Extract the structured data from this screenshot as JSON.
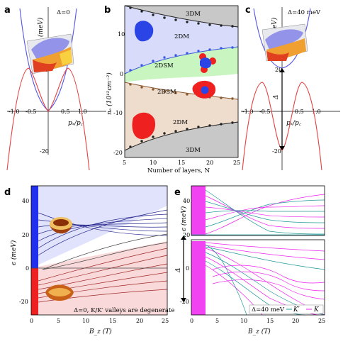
{
  "panels": {
    "a": {
      "label": "a",
      "annotation": "Δ=0",
      "ylabel": "ϵ (meV)",
      "xlabel": "pₓ/p꜀",
      "xticks": [
        "-1.0",
        "-0.5",
        "0.5",
        "1.0"
      ],
      "yticks": [
        "20",
        "-20"
      ]
    },
    "b": {
      "label": "b",
      "ylabel": "nₑ (10¹²cm⁻²)",
      "xlabel": "Number of layers, N",
      "xticks": [
        "5",
        "10",
        "15",
        "20",
        "25"
      ],
      "yticks": [
        "10",
        "0",
        "-10",
        "-20"
      ],
      "regions": [
        "3DM",
        "2DM",
        "2DSM",
        "2DSM",
        "2DM",
        "3DM"
      ]
    },
    "c": {
      "label": "c",
      "annotation": "Δ=40 meV",
      "ylabel": "ϵ (meV)",
      "xlabel": "pₓ/p꜀",
      "xticks": [
        "-1.0",
        "-0.5",
        "0.5",
        "1.0"
      ],
      "yticks": [
        "20",
        "-20"
      ],
      "gap_label": "Δ"
    },
    "d": {
      "label": "d",
      "ylabel": "ϵ (meV)",
      "xlabel": "B_z (T)",
      "xticks": [
        "0",
        "5",
        "10",
        "15",
        "20",
        "25"
      ],
      "yticks": [
        "40",
        "20",
        "0",
        "-20"
      ],
      "note": "Δ=0, K/K′ valleys are degenerate"
    },
    "e": {
      "label": "e",
      "ylabel": "ϵ (meV)",
      "xlabel": "B_z (T)",
      "xticks": [
        "0",
        "5",
        "10",
        "15",
        "20",
        "25"
      ],
      "yticks_top": [
        "40",
        "20"
      ],
      "yticks_bottom": [
        "0",
        "-20"
      ],
      "gap_label": "Δ",
      "legend": {
        "title": "Δ=40 meV",
        "k_prime": "K′",
        "k": "K"
      }
    }
  },
  "colors": {
    "blue": "#5555e6",
    "red": "#e64040",
    "magenta": "#ee22ee",
    "teal": "#229999",
    "region_blue": "#d8dcfa",
    "region_green": "#c8f5c0",
    "region_brown": "#eedccc",
    "region_gray": "#c8c8c8"
  }
}
